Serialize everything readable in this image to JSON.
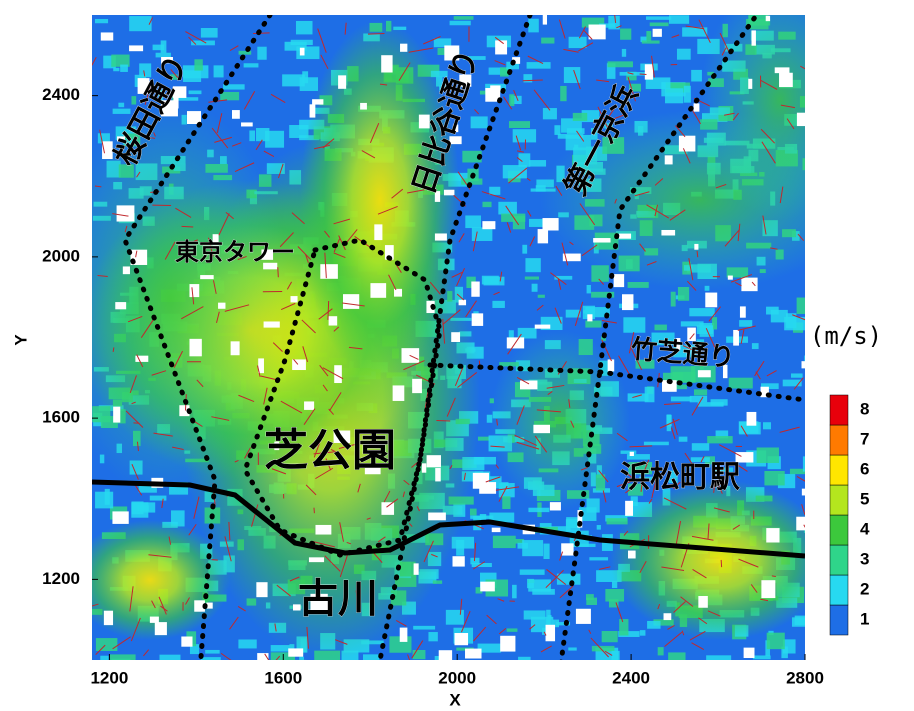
{
  "chart_data": {
    "type": "contour",
    "x_label": "X",
    "y_label": "Y",
    "xlim": [
      1160,
      2800
    ],
    "ylim": [
      1000,
      2600
    ],
    "xticks": [
      1200,
      1600,
      2000,
      2400,
      2800
    ],
    "yticks": [
      1200,
      1600,
      2000,
      2400
    ],
    "colorbar": {
      "unit": "(m/s)",
      "levels": [
        1,
        2,
        3,
        4,
        5,
        6,
        7,
        8
      ],
      "colors": [
        "#1e6ee6",
        "#27d9f0",
        "#2fd58a",
        "#3cc83c",
        "#b4e61e",
        "#ffe600",
        "#ff7a00",
        "#e8000b"
      ]
    },
    "annotations": [
      "桜田通り",
      "日比谷通り",
      "第一京浜",
      "東京タワー",
      "竹芝通り",
      "芝公園",
      "浜松町駅",
      "古川"
    ]
  }
}
